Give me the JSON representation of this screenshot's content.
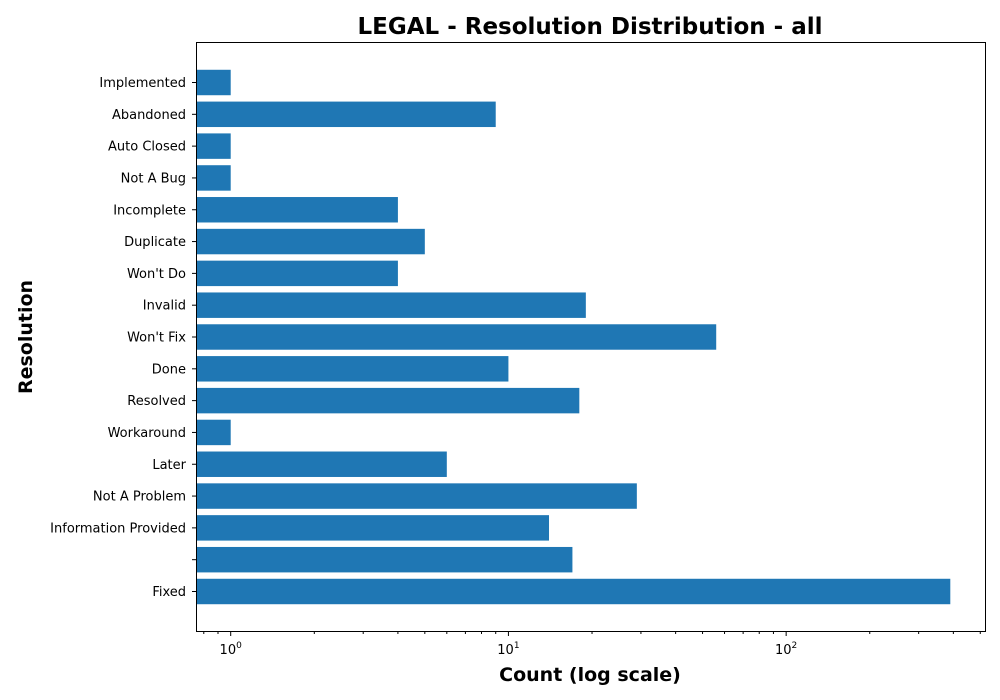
{
  "chart_data": {
    "type": "bar",
    "orientation": "horizontal",
    "title": "LEGAL - Resolution Distribution - all",
    "xlabel": "Count (log scale)",
    "ylabel": "Resolution",
    "xscale": "log",
    "xlim": [
      0.75,
      520
    ],
    "x_ticks": [
      {
        "value": 1,
        "base": "10",
        "exp": "0"
      },
      {
        "value": 10,
        "base": "10",
        "exp": "1"
      },
      {
        "value": 100,
        "base": "10",
        "exp": "2"
      }
    ],
    "categories": [
      "Fixed",
      "",
      "Information Provided",
      "Not A Problem",
      "Later",
      "Workaround",
      "Resolved",
      "Done",
      "Won't Fix",
      "Invalid",
      "Won't Do",
      "Duplicate",
      "Incomplete",
      "Not A Bug",
      "Auto Closed",
      "Abandoned",
      "Implemented"
    ],
    "values": [
      390,
      17,
      14,
      29,
      6,
      1,
      18,
      10,
      56,
      19,
      4,
      5,
      4,
      1,
      1,
      9,
      1
    ],
    "color": "#1f77b4",
    "grid": false,
    "legend": "none"
  }
}
